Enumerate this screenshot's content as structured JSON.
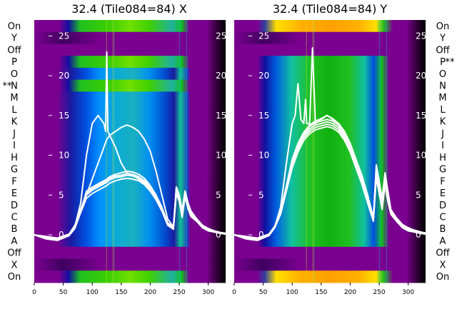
{
  "chart_data": [
    {
      "type": "heatmap",
      "title": "32.4 (Tile084=84) X",
      "rows": [
        "On",
        "Y",
        "Off",
        "P",
        "O",
        "N",
        "M",
        "L",
        "K",
        "J",
        "I",
        "H",
        "G",
        "F",
        "E",
        "D",
        "C",
        "B",
        "A",
        "Off",
        "X",
        "On"
      ],
      "row_markers": {
        "left": "**",
        "left_row": "N"
      },
      "xlim": [
        0,
        330
      ],
      "x_ticks": [
        0,
        50,
        100,
        150,
        200,
        250,
        300
      ],
      "overlay_ylim": [
        -6,
        27
      ],
      "overlay_y_ticks": [
        0,
        5,
        10,
        15,
        20,
        25
      ],
      "hot_rows": [
        "P",
        "N"
      ],
      "bright_rows": [],
      "series": [
        {
          "x": [
            0,
            20,
            40,
            60,
            70,
            80,
            90,
            100,
            110,
            120,
            125,
            130,
            140,
            150,
            160,
            170,
            180,
            190,
            200,
            210,
            220,
            230,
            240,
            245,
            250,
            255,
            260,
            265,
            270,
            280,
            290,
            300,
            310,
            320,
            330
          ],
          "y": [
            0,
            -0.3,
            -0.5,
            0,
            1,
            3,
            5.5,
            6,
            6.4,
            6.8,
            7,
            7.3,
            7.6,
            7.8,
            8,
            7.9,
            7.6,
            7.1,
            6.2,
            5,
            3.5,
            1.5,
            1,
            6,
            5,
            3,
            5.5,
            4,
            3,
            2,
            1.2,
            0.8,
            0.5,
            0.3,
            0.2
          ]
        },
        {
          "x": [
            0,
            20,
            40,
            60,
            70,
            80,
            90,
            100,
            110,
            120,
            125,
            130,
            140,
            150,
            160,
            170,
            180,
            190,
            200,
            210,
            220,
            230,
            240,
            245,
            250,
            255,
            260,
            265,
            270,
            280,
            290,
            300,
            310,
            320,
            330
          ],
          "y": [
            0,
            -0.4,
            -0.6,
            0,
            1,
            3,
            5,
            5.6,
            6,
            6.4,
            6.6,
            6.9,
            7.2,
            7.3,
            7.5,
            7.4,
            7.1,
            6.6,
            5.8,
            4.6,
            3.2,
            1.3,
            0.8,
            5.5,
            4.5,
            2.5,
            5,
            3.5,
            2.5,
            1.8,
            1,
            0.6,
            0.4,
            0.2,
            0.1
          ]
        },
        {
          "x": [
            0,
            20,
            40,
            60,
            70,
            80,
            90,
            100,
            110,
            120,
            125,
            130,
            140,
            150,
            160,
            170,
            180,
            190,
            200,
            210,
            220,
            230,
            240,
            245,
            250,
            255,
            260,
            265,
            270,
            280,
            290,
            300,
            310,
            320,
            330
          ],
          "y": [
            0,
            -0.2,
            -0.4,
            0.1,
            1.2,
            3.2,
            5.2,
            5.8,
            6.2,
            6.6,
            6.8,
            7.1,
            7.4,
            7.5,
            7.7,
            7.6,
            7.3,
            6.8,
            6,
            4.8,
            3.3,
            1.4,
            0.9,
            5.8,
            4.8,
            2.8,
            5.2,
            3.8,
            2.8,
            1.9,
            1.1,
            0.7,
            0.45,
            0.25,
            0.15
          ]
        },
        {
          "x": [
            0,
            20,
            40,
            60,
            70,
            80,
            90,
            100,
            110,
            120,
            125,
            130,
            140,
            150,
            160,
            170,
            180,
            190,
            200,
            210,
            220,
            230,
            240,
            245,
            250,
            255,
            260,
            265,
            270,
            280,
            290,
            300,
            310,
            320,
            330
          ],
          "y": [
            0,
            -0.5,
            -0.7,
            -0.1,
            0.8,
            2.8,
            4.6,
            5.2,
            5.6,
            6,
            6.2,
            6.5,
            6.8,
            7,
            7.1,
            7,
            6.8,
            6.3,
            5.5,
            4.4,
            3,
            1.2,
            0.7,
            5.2,
            4.2,
            2.2,
            4.8,
            3.3,
            2.3,
            1.7,
            0.9,
            0.5,
            0.35,
            0.2,
            0.1
          ]
        },
        {
          "x": [
            0,
            20,
            40,
            60,
            70,
            80,
            90,
            100,
            110,
            120,
            125,
            130,
            140,
            150,
            160,
            170,
            180,
            190,
            200,
            210,
            220,
            230,
            240,
            245,
            250,
            255,
            260,
            265,
            270,
            280,
            290,
            300,
            310,
            320,
            330
          ],
          "y": [
            0,
            -0.3,
            -0.5,
            0,
            1,
            3,
            5,
            7,
            9,
            11,
            12,
            12.5,
            13,
            13.5,
            13.8,
            13.5,
            13,
            12,
            10.5,
            8,
            5,
            2,
            1,
            6,
            5,
            3,
            5.5,
            4,
            3,
            2,
            1.2,
            0.8,
            0.5,
            0.3,
            0.2
          ]
        },
        {
          "x": [
            0,
            20,
            40,
            60,
            70,
            80,
            90,
            100,
            110,
            115,
            120,
            123,
            125,
            127,
            130,
            140,
            150,
            160,
            170,
            180,
            190,
            200,
            210,
            220,
            230,
            240,
            245,
            250,
            255,
            260,
            265,
            270,
            280,
            290,
            300,
            310,
            320,
            330
          ],
          "y": [
            0,
            -0.3,
            -0.5,
            0,
            1,
            4,
            10,
            14,
            15,
            14.5,
            14,
            13,
            23,
            13,
            12.5,
            11,
            9,
            7.8,
            7.5,
            7,
            6.5,
            5.5,
            4.5,
            3,
            1.5,
            1,
            6,
            5,
            3,
            5.5,
            4,
            3,
            2,
            1.2,
            0.8,
            0.5,
            0.3,
            0.2
          ]
        }
      ]
    },
    {
      "type": "heatmap",
      "title": "32.4 (Tile084=84) Y",
      "rows": [
        "On",
        "Y",
        "Off",
        "P",
        "O",
        "N",
        "M",
        "L",
        "K",
        "J",
        "I",
        "H",
        "G",
        "F",
        "E",
        "D",
        "C",
        "B",
        "A",
        "Off",
        "X",
        "On"
      ],
      "row_markers": {
        "right": "**",
        "right_row": "P"
      },
      "xlim": [
        0,
        330
      ],
      "x_ticks": [
        0,
        50,
        100,
        150,
        200,
        250,
        300
      ],
      "overlay_ylim": [
        -6,
        27
      ],
      "overlay_y_ticks": [
        0,
        5,
        10,
        15,
        20,
        25
      ],
      "hot_rows": [],
      "bright_rows": [
        "On",
        "Y"
      ],
      "series": [
        {
          "x": [
            0,
            20,
            40,
            60,
            70,
            80,
            90,
            100,
            110,
            120,
            130,
            140,
            150,
            160,
            170,
            180,
            190,
            200,
            210,
            220,
            230,
            240,
            245,
            250,
            255,
            260,
            265,
            270,
            280,
            290,
            300,
            310,
            320,
            330
          ],
          "y": [
            0,
            -0.3,
            -0.5,
            0,
            1,
            3,
            6,
            9,
            11,
            12.5,
            13.3,
            13.8,
            14,
            14.2,
            14,
            13.5,
            12.5,
            11,
            9,
            7,
            4.5,
            2,
            8,
            6,
            4,
            7,
            5,
            3,
            2,
            1.2,
            0.8,
            0.5,
            0.3,
            0.2
          ]
        },
        {
          "x": [
            0,
            20,
            40,
            60,
            70,
            80,
            90,
            100,
            110,
            120,
            130,
            140,
            150,
            160,
            170,
            180,
            190,
            200,
            210,
            220,
            230,
            240,
            245,
            250,
            255,
            260,
            265,
            270,
            280,
            290,
            300,
            310,
            320,
            330
          ],
          "y": [
            0,
            -0.4,
            -0.6,
            0,
            1,
            2.8,
            5.8,
            8.7,
            10.7,
            12.2,
            13,
            13.5,
            13.7,
            13.9,
            13.7,
            13.2,
            12.2,
            10.7,
            8.7,
            6.7,
            4.2,
            1.8,
            7.5,
            5.5,
            3.5,
            6.5,
            4.5,
            2.8,
            1.8,
            1,
            0.6,
            0.4,
            0.2,
            0.1
          ]
        },
        {
          "x": [
            0,
            20,
            40,
            60,
            70,
            80,
            90,
            100,
            110,
            120,
            130,
            140,
            150,
            160,
            170,
            180,
            190,
            200,
            210,
            220,
            230,
            240,
            245,
            250,
            255,
            260,
            265,
            270,
            280,
            290,
            300,
            310,
            320,
            330
          ],
          "y": [
            0,
            -0.2,
            -0.4,
            0.1,
            1.1,
            3.1,
            6.1,
            9.2,
            11.2,
            12.7,
            13.6,
            14.1,
            14.3,
            14.5,
            14.3,
            13.8,
            12.8,
            11.3,
            9.3,
            7.2,
            4.7,
            2.1,
            8.2,
            6.2,
            4.2,
            7.2,
            5.2,
            3.1,
            2.1,
            1.3,
            0.85,
            0.55,
            0.35,
            0.25
          ]
        },
        {
          "x": [
            0,
            20,
            40,
            60,
            70,
            80,
            90,
            100,
            110,
            120,
            130,
            140,
            150,
            160,
            170,
            180,
            190,
            200,
            210,
            220,
            230,
            240,
            245,
            250,
            255,
            260,
            265,
            270,
            280,
            290,
            300,
            310,
            320,
            330
          ],
          "y": [
            0,
            -0.5,
            -0.7,
            -0.1,
            0.9,
            2.6,
            5.5,
            8.4,
            10.4,
            11.9,
            12.7,
            13.2,
            13.4,
            13.6,
            13.4,
            12.9,
            11.9,
            10.4,
            8.4,
            6.4,
            4,
            1.7,
            7.2,
            5.2,
            3.2,
            6.2,
            4.2,
            2.6,
            1.7,
            0.9,
            0.5,
            0.35,
            0.2,
            0.1
          ]
        },
        {
          "x": [
            0,
            20,
            40,
            60,
            70,
            80,
            90,
            100,
            105,
            110,
            115,
            120,
            123,
            125,
            127,
            130,
            135,
            140,
            150,
            160,
            170,
            180,
            190,
            200,
            210,
            220,
            230,
            240,
            245,
            250,
            255,
            260,
            265,
            270,
            280,
            290,
            300,
            310,
            320,
            330
          ],
          "y": [
            0,
            -0.3,
            -0.5,
            0,
            1,
            3.5,
            9,
            14,
            15,
            19,
            14.5,
            14,
            17,
            14,
            14,
            13.8,
            23.5,
            14,
            14.5,
            15,
            14.5,
            14,
            13,
            11.5,
            9.5,
            7.5,
            5,
            2,
            8.5,
            6.5,
            4.5,
            7.5,
            5.5,
            3.2,
            2,
            1.2,
            0.8,
            0.5,
            0.3,
            0.2
          ]
        },
        {
          "x": [
            0,
            20,
            40,
            60,
            70,
            80,
            90,
            100,
            110,
            120,
            130,
            140,
            150,
            160,
            170,
            180,
            190,
            200,
            210,
            220,
            230,
            240,
            245,
            250,
            255,
            260,
            265,
            270,
            280,
            290,
            300,
            310,
            320,
            330
          ],
          "y": [
            0,
            -0.3,
            -0.5,
            0,
            1,
            3,
            6.2,
            9.5,
            11.5,
            12.9,
            13.8,
            14.3,
            14.6,
            15,
            14.6,
            14,
            13,
            11.5,
            9.5,
            7.5,
            5,
            2.2,
            8.8,
            6.8,
            4.5,
            7.8,
            5.5,
            3.2,
            2.1,
            1.3,
            0.9,
            0.6,
            0.4,
            0.2
          ]
        }
      ]
    }
  ]
}
